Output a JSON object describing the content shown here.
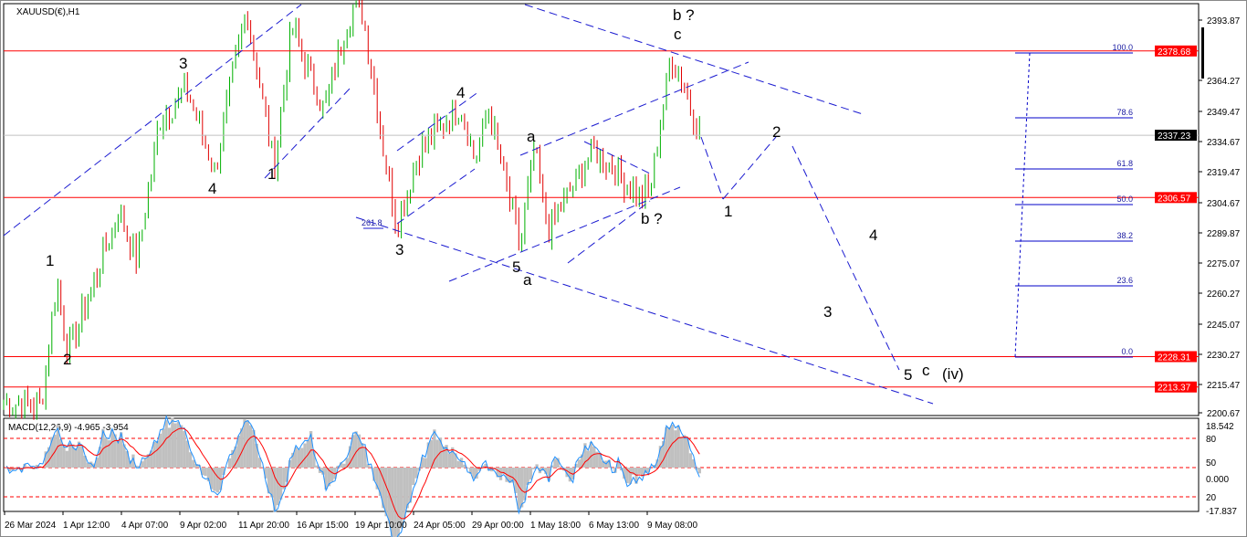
{
  "symbol_title": "XAUUSD(€),H1",
  "macd_title": "MACD(12,26,9) -4.965 -3.954",
  "colors": {
    "bull": "#00b000",
    "bear": "#e00000",
    "hline": "#ff0000",
    "trend": "#1a1ad0",
    "fib": "#0000c8",
    "macd_hist": "#c0c0c0",
    "macd_signal": "#ff0000",
    "macd_line": "#1e90ff",
    "wave_magenta": "#ff00ff"
  },
  "chart_data": {
    "type": "candlestick",
    "price_axis_ticks": [
      "2393.87",
      "2364.27",
      "2349.47",
      "2334.67",
      "2319.47",
      "2304.67",
      "2289.87",
      "2275.07",
      "2260.27",
      "2245.07",
      "2230.27",
      "2215.47",
      "2200.67"
    ],
    "time_axis_ticks": [
      "26 Mar 2024",
      "1 Apr 12:00",
      "4 Apr 07:00",
      "9 Apr 02:00",
      "11 Apr 20:00",
      "16 Apr 15:00",
      "19 Apr 10:00",
      "24 Apr 05:00",
      "29 Apr 00:00",
      "1 May 18:00",
      "6 May 13:00",
      "9 May 08:00"
    ],
    "price_swings": [
      2205,
      2265,
      2230,
      2300,
      2275,
      2345,
      2360,
      2320,
      2400,
      2322,
      2390,
      2350,
      2400,
      2397,
      2330,
      2293,
      2330,
      2352,
      2325,
      2350,
      2282,
      2330,
      2290,
      2330,
      2308,
      2310,
      2376,
      2360,
      2337
    ],
    "current_price": "2337.23",
    "horizontal_levels": [
      "2378.68",
      "2306.57",
      "2228.31",
      "2213.37"
    ],
    "fib_levels": [
      "100.0",
      "78.6",
      "61.8",
      "50.0",
      "38.2",
      "23.6",
      "0.0"
    ],
    "fib_extension_label": "261.8",
    "wave_labels": [
      {
        "text": "1"
      },
      {
        "text": "2"
      },
      {
        "text": "3"
      },
      {
        "text": "4"
      },
      {
        "text": "1"
      },
      {
        "text": "4"
      },
      {
        "text": "3"
      },
      {
        "text": "5"
      },
      {
        "text": "a"
      },
      {
        "text": "a"
      },
      {
        "text": "b ?"
      },
      {
        "text": "c"
      },
      {
        "text": "b ?"
      },
      {
        "text": "1"
      },
      {
        "text": "2"
      },
      {
        "text": "4"
      },
      {
        "text": "3"
      },
      {
        "text": "5"
      },
      {
        "text": "c"
      },
      {
        "text": "(iv)"
      }
    ],
    "macd_axis_ticks": [
      "18.542",
      "80",
      "50",
      "0.000",
      "20",
      "-17.837"
    ]
  }
}
